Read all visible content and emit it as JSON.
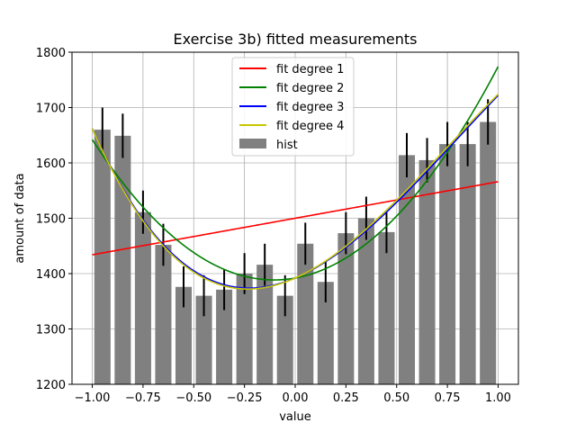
{
  "chart_data": {
    "type": "bar",
    "title": "Exercise 3b) fitted measurements",
    "xlabel": "value",
    "ylabel": "amount of data",
    "xlim": [
      -1.1,
      1.1
    ],
    "ylim": [
      1200,
      1800
    ],
    "xticks": [
      -1.0,
      -0.75,
      -0.5,
      -0.25,
      0.0,
      0.25,
      0.5,
      0.75,
      1.0
    ],
    "xtick_labels": [
      "−1.00",
      "−0.75",
      "−0.50",
      "−0.25",
      "0.00",
      "0.25",
      "0.50",
      "0.75",
      "1.00"
    ],
    "yticks": [
      1200,
      1300,
      1400,
      1500,
      1600,
      1700,
      1800
    ],
    "ytick_labels": [
      "1200",
      "1300",
      "1400",
      "1500",
      "1600",
      "1700",
      "1800"
    ],
    "grid": true,
    "legend_position": "top-center",
    "bar_width": 0.08,
    "histogram": {
      "name": "hist",
      "color": "#808080",
      "x": [
        -0.95,
        -0.85,
        -0.75,
        -0.65,
        -0.55,
        -0.45,
        -0.35,
        -0.25,
        -0.15,
        -0.05,
        0.05,
        0.15,
        0.25,
        0.35,
        0.45,
        0.55,
        0.65,
        0.75,
        0.85,
        0.95
      ],
      "values": [
        1660,
        1649,
        1511,
        1452,
        1376,
        1360,
        1371,
        1400,
        1416,
        1360,
        1454,
        1385,
        1473,
        1500,
        1475,
        1614,
        1605,
        1634,
        1634,
        1674
      ],
      "errors": [
        40,
        40,
        39,
        38,
        37,
        37,
        37,
        37,
        38,
        37,
        38,
        37,
        38,
        39,
        38,
        40,
        40,
        40,
        40,
        41
      ],
      "error_color": "#000000"
    },
    "series": [
      {
        "name": "fit degree 1",
        "color": "#ff0000",
        "coefficients": [
          1500,
          66
        ]
      },
      {
        "name": "fit degree 2",
        "color": "#008000",
        "coefficients": [
          1392,
          66,
          316
        ]
      },
      {
        "name": "fit degree 3",
        "color": "#0000ff",
        "coefficients": [
          1392,
          155,
          300,
          -125
        ]
      },
      {
        "name": "fit degree 4",
        "color": "#c8c800",
        "coefficients": [
          1392,
          163,
          303,
          -132,
          -2
        ]
      }
    ]
  }
}
